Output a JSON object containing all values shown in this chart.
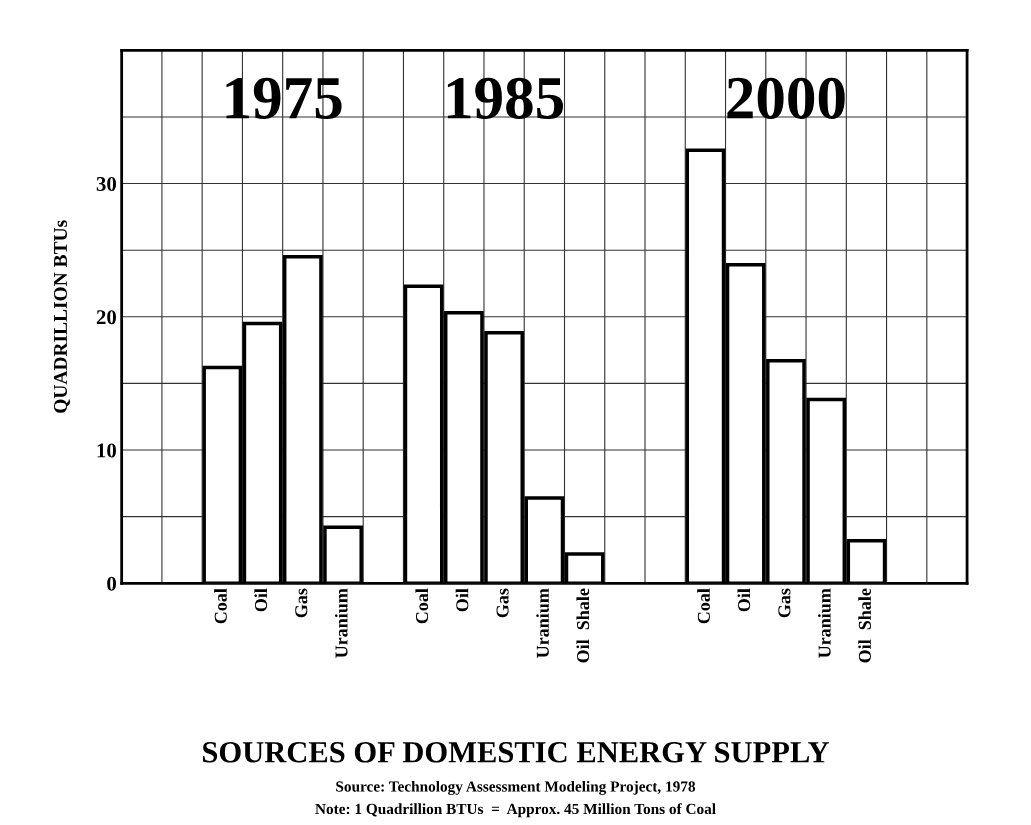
{
  "chart_data": {
    "type": "bar",
    "title": "SOURCES OF DOMESTIC ENERGY SUPPLY",
    "ylabel": "QUADRILLION BTUs",
    "categories": [
      null,
      null,
      "Coal",
      "Oil",
      "Gas",
      "Uranium",
      null,
      "Coal",
      "Oil",
      "Gas",
      "Uranium",
      "Oil  Shale",
      null,
      null,
      "Coal",
      "Oil",
      "Gas",
      "Uranium",
      "Oil  Shale",
      null,
      null
    ],
    "values": [
      null,
      null,
      16.2,
      19.5,
      24.5,
      4.2,
      null,
      22.3,
      20.3,
      18.8,
      6.4,
      2.2,
      null,
      null,
      32.5,
      23.9,
      16.7,
      13.8,
      3.2,
      null,
      null
    ],
    "color": "#ffffff",
    "ylim": [
      0,
      40
    ],
    "yticks": [
      0,
      {
        "value": 5,
        "label": null
      },
      10,
      {
        "value": 15,
        "label": null
      },
      20,
      {
        "value": 25,
        "label": null
      },
      30,
      {
        "value": 35,
        "label": null
      }
    ],
    "grid": true,
    "annotations": [
      "1975",
      "1985",
      "2000",
      "Source: Technology Assessment Modeling Project, 1978",
      "Note: 1 Quadrillion BTUs  =  Approx. 45 Million Tons of Coal"
    ]
  }
}
